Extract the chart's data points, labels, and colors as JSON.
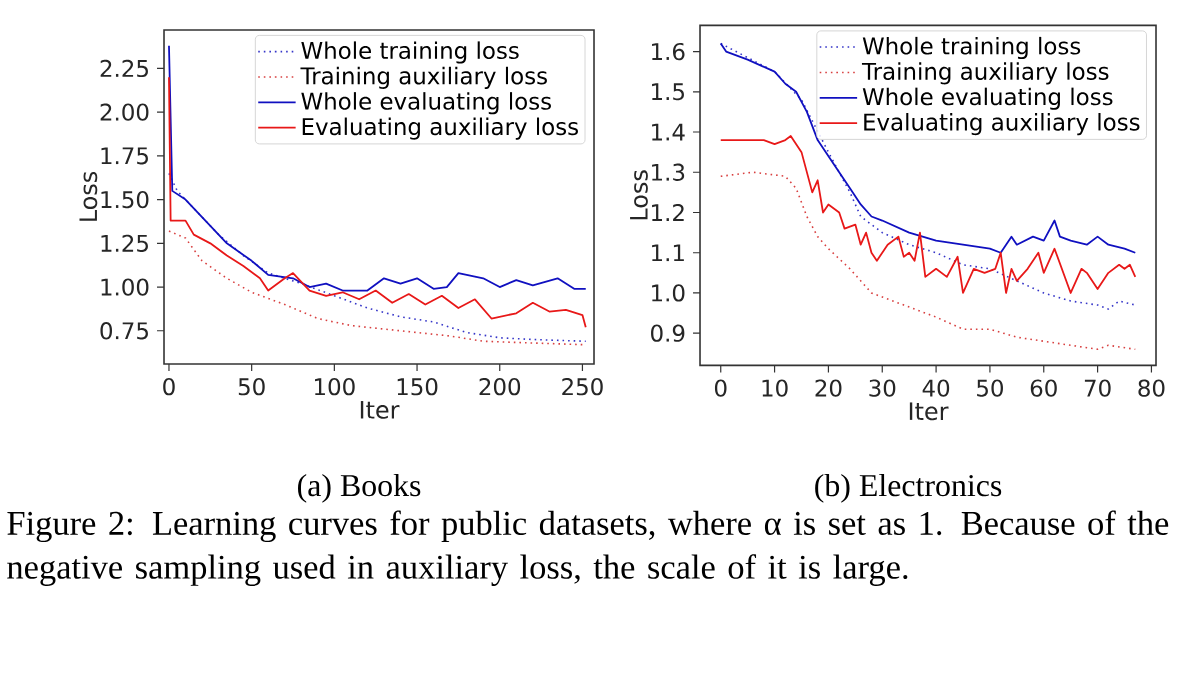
{
  "chart_data": [
    {
      "type": "line",
      "xlabel": "Iter",
      "ylabel": "Loss",
      "legend": "top right",
      "marker": "none",
      "xlim": [
        -3,
        257
      ],
      "ylim": [
        0.56,
        2.47
      ],
      "xticks": [
        0,
        50,
        100,
        150,
        200,
        250
      ],
      "yticks": [
        0.75,
        {
          "value": 1,
          "label": "1.00"
        },
        1.25,
        {
          "value": 1.5,
          "label": "1.50"
        },
        1.75,
        {
          "value": 2,
          "label": "2.00"
        },
        2.25
      ],
      "annotations": [
        "(a) Books",
        "Figure 2: Learning curves for public datasets, where α is set as 1. Because of the negative sampling used in auxiliary loss, the scale of it is large."
      ],
      "series": [
        {
          "name": "Whole training loss",
          "color": "#3535c8",
          "line_style": "dotted",
          "x": [
            0,
            5,
            15,
            30,
            45,
            60,
            80,
            100,
            120,
            140,
            160,
            180,
            200,
            220,
            252
          ],
          "values": [
            1.65,
            1.55,
            1.45,
            1.3,
            1.18,
            1.08,
            1.02,
            0.95,
            0.88,
            0.83,
            0.8,
            0.74,
            0.71,
            0.7,
            0.69
          ]
        },
        {
          "name": "Training auxiliary loss",
          "color": "#d84040",
          "line_style": "dotted",
          "x": [
            0,
            10,
            20,
            35,
            50,
            70,
            90,
            110,
            140,
            170,
            190,
            220,
            252
          ],
          "values": [
            1.32,
            1.28,
            1.15,
            1.05,
            0.97,
            0.9,
            0.82,
            0.78,
            0.75,
            0.72,
            0.69,
            0.68,
            0.67
          ]
        },
        {
          "name": "Whole evaluating loss",
          "color": "#1010c0",
          "line_style": "solid",
          "x": [
            0,
            2,
            10,
            20,
            35,
            50,
            60,
            75,
            85,
            95,
            105,
            120,
            130,
            140,
            150,
            160,
            168,
            175,
            190,
            200,
            210,
            220,
            235,
            245,
            252
          ],
          "values": [
            2.38,
            1.55,
            1.5,
            1.4,
            1.25,
            1.15,
            1.07,
            1.05,
            1.0,
            1.02,
            0.98,
            0.98,
            1.05,
            1.02,
            1.05,
            0.99,
            1.0,
            1.08,
            1.05,
            1.0,
            1.04,
            1.01,
            1.05,
            0.99,
            0.99
          ]
        },
        {
          "name": "Evaluating auxiliary loss",
          "color": "#e81818",
          "line_style": "solid",
          "x": [
            0,
            1,
            10,
            15,
            25,
            35,
            45,
            55,
            60,
            70,
            75,
            85,
            95,
            105,
            115,
            125,
            135,
            145,
            155,
            165,
            175,
            185,
            195,
            210,
            220,
            230,
            240,
            250,
            252
          ],
          "values": [
            2.2,
            1.38,
            1.38,
            1.3,
            1.25,
            1.18,
            1.12,
            1.05,
            0.98,
            1.05,
            1.08,
            0.98,
            0.95,
            0.97,
            0.93,
            0.98,
            0.91,
            0.96,
            0.9,
            0.95,
            0.88,
            0.93,
            0.82,
            0.85,
            0.91,
            0.86,
            0.87,
            0.84,
            0.77
          ]
        }
      ]
    },
    {
      "type": "line",
      "xlabel": "Iter",
      "ylabel": "Loss",
      "legend": "top right",
      "marker": "none",
      "xlim": [
        -3.85,
        80.85
      ],
      "ylim": [
        0.82,
        1.665
      ],
      "xticks": [
        0,
        10,
        20,
        30,
        40,
        50,
        60,
        70,
        80
      ],
      "yticks": [
        0.9,
        {
          "value": 1,
          "label": "1.0"
        },
        1.1,
        1.2,
        1.3,
        1.4,
        1.5,
        1.6
      ],
      "annotations": [
        "(b) Electronics"
      ],
      "series": [
        {
          "name": "Whole training loss",
          "color": "#3535c8",
          "line_style": "dotted",
          "x": [
            0,
            10,
            15,
            20,
            24,
            26,
            30,
            35,
            40,
            45,
            50,
            55,
            60,
            65,
            70,
            72,
            74,
            77
          ],
          "values": [
            1.62,
            1.55,
            1.48,
            1.35,
            1.25,
            1.19,
            1.15,
            1.12,
            1.1,
            1.07,
            1.06,
            1.03,
            1.0,
            0.98,
            0.97,
            0.96,
            0.98,
            0.97
          ]
        },
        {
          "name": "Training auxiliary loss",
          "color": "#d84040",
          "line_style": "dotted",
          "x": [
            0,
            6,
            12,
            14,
            16,
            18,
            20,
            24,
            28,
            30,
            34,
            40,
            45,
            50,
            55,
            60,
            65,
            70,
            72,
            77
          ],
          "values": [
            1.29,
            1.3,
            1.29,
            1.26,
            1.19,
            1.14,
            1.11,
            1.06,
            1.0,
            0.99,
            0.97,
            0.94,
            0.91,
            0.91,
            0.89,
            0.88,
            0.87,
            0.86,
            0.87,
            0.86
          ]
        },
        {
          "name": "Whole evaluating loss",
          "color": "#1010c0",
          "line_style": "solid",
          "x": [
            0,
            1,
            5,
            10,
            12,
            14,
            16,
            18,
            20,
            22,
            24,
            26,
            28,
            30,
            35,
            40,
            45,
            50,
            52,
            54,
            55,
            58,
            60,
            62,
            63,
            65,
            68,
            70,
            72,
            75,
            77
          ],
          "values": [
            1.62,
            1.6,
            1.58,
            1.55,
            1.52,
            1.5,
            1.45,
            1.38,
            1.34,
            1.3,
            1.26,
            1.22,
            1.19,
            1.18,
            1.15,
            1.13,
            1.12,
            1.11,
            1.1,
            1.14,
            1.12,
            1.14,
            1.13,
            1.18,
            1.14,
            1.13,
            1.12,
            1.14,
            1.12,
            1.11,
            1.1
          ]
        },
        {
          "name": "Evaluating auxiliary loss",
          "color": "#e81818",
          "line_style": "solid",
          "x": [
            0,
            8,
            10,
            12,
            13,
            15,
            17,
            18,
            19,
            20,
            22,
            23,
            25,
            26,
            27,
            28,
            29,
            31,
            33,
            34,
            35,
            36,
            37,
            38,
            40,
            42,
            44,
            45,
            47,
            49,
            51,
            52,
            53,
            54,
            55,
            57,
            59,
            60,
            62,
            65,
            67,
            68,
            70,
            72,
            74,
            75,
            76,
            77
          ],
          "values": [
            1.38,
            1.38,
            1.37,
            1.38,
            1.39,
            1.35,
            1.25,
            1.28,
            1.2,
            1.22,
            1.2,
            1.16,
            1.17,
            1.12,
            1.15,
            1.1,
            1.08,
            1.12,
            1.14,
            1.09,
            1.1,
            1.08,
            1.15,
            1.04,
            1.06,
            1.04,
            1.09,
            1.0,
            1.06,
            1.05,
            1.06,
            1.1,
            1.0,
            1.06,
            1.03,
            1.06,
            1.1,
            1.05,
            1.11,
            1.0,
            1.06,
            1.05,
            1.01,
            1.05,
            1.07,
            1.06,
            1.07,
            1.04
          ]
        }
      ]
    }
  ]
}
